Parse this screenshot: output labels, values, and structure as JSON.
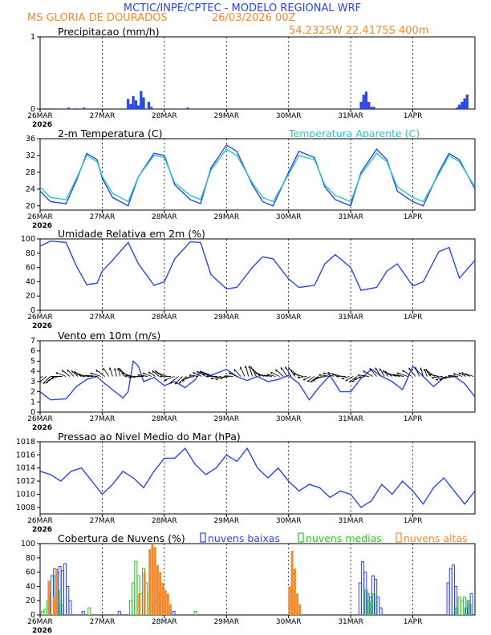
{
  "header": {
    "line1": "MCTIC/INPE/CPTEC - MODELO REGIONAL WRF",
    "station": "MS GLORIA DE DOURADOS",
    "run": "26/03/2026 00Z",
    "coords": "54.2325W 22.4175S 400m"
  },
  "colors": {
    "blue": "#2a45e8",
    "cyan": "#22c8c8",
    "green": "#22c822",
    "orange": "#f08a2a",
    "header_blue": "#2a45e8",
    "header_orange": "#f08a2a"
  },
  "x_axis": {
    "ticks": [
      "26MAR",
      "27MAR",
      "28MAR",
      "29MAR",
      "30MAR",
      "31MAR",
      "1APR"
    ],
    "year": "2026",
    "hours_total": 168
  },
  "chart_data": [
    {
      "id": "precip",
      "type": "bar",
      "title": "Precipitacao (mm/h)",
      "ylim": [
        0,
        1
      ],
      "yticks": [
        "0",
        "1"
      ],
      "x_hours": [
        2,
        4,
        11,
        14,
        17,
        34,
        35,
        36,
        37,
        38,
        39,
        40,
        42,
        43,
        57,
        124,
        125,
        126,
        127,
        128,
        129,
        161,
        162,
        163,
        164,
        165
      ],
      "values": [
        0.01,
        0.01,
        0.02,
        0.01,
        0.02,
        0.14,
        0.07,
        0.18,
        0.12,
        0.05,
        0.25,
        0.16,
        0.1,
        0.03,
        0.02,
        0.1,
        0.2,
        0.24,
        0.1,
        0.03,
        0.03,
        0.02,
        0.06,
        0.1,
        0.15,
        0.2
      ]
    },
    {
      "id": "temp",
      "type": "line",
      "title": "2-m Temperatura (C)",
      "legend2": "Temperatura Aparente (C)",
      "ylim": [
        19,
        36
      ],
      "yticks": [
        "20",
        "24",
        "28",
        "32",
        "36"
      ],
      "series": [
        {
          "name": "Temperatura",
          "color": "blue",
          "x": [
            0,
            4,
            10,
            14,
            18,
            22,
            24,
            28,
            34,
            38,
            44,
            48,
            52,
            58,
            62,
            66,
            72,
            76,
            82,
            86,
            90,
            96,
            100,
            106,
            110,
            114,
            120,
            124,
            130,
            134,
            138,
            144,
            148,
            154,
            158,
            162,
            168
          ],
          "values": [
            23.5,
            21.0,
            20.5,
            26.0,
            32.5,
            31.0,
            26.5,
            22.0,
            20.0,
            27.0,
            32.5,
            32.0,
            25.0,
            21.5,
            20.5,
            29.0,
            34.5,
            33.0,
            25.0,
            21.0,
            20.0,
            28.0,
            33.0,
            31.5,
            24.5,
            21.5,
            20.0,
            28.0,
            33.5,
            31.0,
            23.5,
            21.0,
            20.0,
            28.0,
            32.5,
            31.0,
            24.0
          ]
        },
        {
          "name": "Temperatura Aparente",
          "color": "cyan",
          "x": [
            0,
            4,
            10,
            14,
            18,
            22,
            24,
            28,
            34,
            38,
            44,
            48,
            52,
            58,
            62,
            66,
            72,
            76,
            82,
            86,
            90,
            96,
            100,
            106,
            110,
            114,
            120,
            124,
            130,
            134,
            138,
            144,
            148,
            154,
            158,
            162,
            168
          ],
          "values": [
            24.5,
            22.0,
            21.5,
            26.5,
            32.0,
            30.5,
            27.0,
            23.0,
            21.0,
            27.0,
            32.0,
            31.5,
            25.5,
            22.5,
            21.5,
            28.5,
            33.5,
            32.0,
            25.5,
            22.0,
            21.0,
            27.5,
            32.0,
            31.0,
            25.0,
            22.5,
            21.0,
            27.5,
            32.5,
            30.5,
            24.5,
            22.0,
            21.0,
            27.5,
            32.0,
            30.5,
            24.5
          ]
        }
      ]
    },
    {
      "id": "rh",
      "type": "line",
      "title": "Umidade Relativa em 2m (%)",
      "ylim": [
        0,
        100
      ],
      "yticks": [
        "0",
        "20",
        "40",
        "60",
        "80",
        "100"
      ],
      "series": [
        {
          "name": "Umidade",
          "color": "blue",
          "x": [
            0,
            4,
            10,
            14,
            18,
            22,
            24,
            28,
            34,
            38,
            44,
            48,
            52,
            58,
            62,
            66,
            72,
            76,
            82,
            86,
            90,
            96,
            100,
            106,
            110,
            114,
            120,
            124,
            130,
            134,
            138,
            144,
            148,
            154,
            158,
            162,
            168
          ],
          "values": [
            90,
            97,
            95,
            62,
            36,
            38,
            55,
            70,
            95,
            65,
            35,
            40,
            72,
            96,
            95,
            50,
            30,
            32,
            60,
            75,
            72,
            44,
            32,
            35,
            65,
            78,
            60,
            28,
            32,
            55,
            65,
            34,
            40,
            82,
            88,
            45,
            70
          ]
        }
      ]
    },
    {
      "id": "wind",
      "type": "line",
      "title": "Vento em 10m (m/s)",
      "ylim": [
        0,
        7
      ],
      "yticks": [
        "0",
        "1",
        "2",
        "3",
        "4",
        "5",
        "6",
        "7"
      ],
      "series": [
        {
          "name": "Vento",
          "color": "blue",
          "x": [
            0,
            4,
            10,
            14,
            18,
            22,
            24,
            28,
            32,
            34,
            36,
            38,
            40,
            44,
            48,
            52,
            56,
            60,
            62,
            66,
            72,
            76,
            80,
            84,
            88,
            92,
            96,
            100,
            104,
            108,
            112,
            116,
            120,
            124,
            128,
            132,
            136,
            140,
            144,
            148,
            152,
            156,
            160,
            164,
            168
          ],
          "values": [
            2.0,
            1.2,
            1.3,
            2.5,
            3.2,
            3.5,
            3.0,
            2.2,
            1.4,
            2.0,
            5.0,
            4.5,
            3.0,
            3.4,
            2.6,
            3.0,
            2.4,
            3.2,
            4.0,
            3.6,
            4.2,
            3.5,
            3.1,
            3.5,
            3.0,
            3.2,
            3.6,
            2.8,
            1.2,
            2.5,
            3.6,
            2.0,
            2.0,
            3.3,
            4.2,
            3.5,
            3.0,
            2.2,
            4.5,
            3.5,
            2.5,
            3.4,
            3.5,
            2.8,
            1.5
          ]
        }
      ],
      "barbs_note": "vectors drawn along y=3.5"
    },
    {
      "id": "pres",
      "type": "line",
      "title": "Pressao ao Nivel Medio do Mar (hPa)",
      "ylim": [
        1007,
        1018
      ],
      "yticks": [
        "1008",
        "1010",
        "1012",
        "1014",
        "1016",
        "1018"
      ],
      "series": [
        {
          "name": "Pressao",
          "color": "blue",
          "x": [
            0,
            4,
            8,
            12,
            16,
            20,
            24,
            28,
            32,
            36,
            40,
            44,
            48,
            52,
            56,
            60,
            64,
            68,
            72,
            76,
            80,
            84,
            88,
            92,
            96,
            100,
            104,
            108,
            112,
            116,
            120,
            124,
            128,
            132,
            136,
            140,
            144,
            148,
            152,
            156,
            160,
            164,
            168
          ],
          "values": [
            1013.5,
            1013.0,
            1012.0,
            1013.5,
            1014.0,
            1012.0,
            1010.0,
            1011.5,
            1013.5,
            1012.5,
            1011.0,
            1013.5,
            1015.5,
            1015.5,
            1017.0,
            1014.5,
            1013.0,
            1014.0,
            1016.0,
            1015.0,
            1017.0,
            1014.0,
            1012.5,
            1014.0,
            1012.0,
            1010.5,
            1011.5,
            1011.0,
            1009.5,
            1010.5,
            1010.0,
            1008.0,
            1009.0,
            1011.5,
            1010.0,
            1012.0,
            1010.5,
            1008.5,
            1011.0,
            1012.5,
            1010.5,
            1008.5,
            1010.5
          ]
        }
      ]
    },
    {
      "id": "clouds",
      "type": "bar",
      "title": "Cobertura de Nuvens (%)",
      "ylim": [
        0,
        100
      ],
      "yticks": [
        "0",
        "20",
        "40",
        "60",
        "80",
        "100"
      ],
      "legend": [
        "nuvens baixas",
        "nuvens medias",
        "nuvens altas"
      ],
      "series": [
        {
          "name": "nuvens baixas",
          "color": "blue",
          "x": [
            4,
            5,
            6,
            7,
            8,
            9,
            10,
            11,
            12,
            17,
            31,
            44,
            45,
            46,
            47,
            48,
            52,
            124,
            125,
            126,
            127,
            128,
            129,
            130,
            131,
            132,
            158,
            159,
            160,
            161,
            165,
            166,
            167
          ],
          "values": [
            30,
            55,
            65,
            60,
            68,
            62,
            72,
            40,
            20,
            5,
            5,
            10,
            20,
            30,
            20,
            10,
            5,
            45,
            75,
            60,
            30,
            25,
            55,
            50,
            25,
            10,
            45,
            65,
            70,
            40,
            10,
            20,
            30
          ]
        },
        {
          "name": "nuvens medias",
          "color": "green",
          "x": [
            1,
            2,
            3,
            6,
            7,
            8,
            19,
            35,
            36,
            37,
            38,
            39,
            40,
            41,
            42,
            43,
            60,
            126,
            127,
            128,
            129,
            161,
            162,
            163,
            164,
            165,
            166
          ],
          "values": [
            5,
            8,
            20,
            55,
            35,
            15,
            10,
            20,
            45,
            75,
            55,
            30,
            65,
            45,
            30,
            15,
            5,
            35,
            20,
            15,
            30,
            10,
            25,
            20,
            25,
            20,
            15
          ]
        },
        {
          "name": "nuvens altas",
          "color": "orange",
          "x": [
            3,
            5,
            6,
            38,
            40,
            42,
            43,
            44,
            45,
            46,
            47,
            48,
            49,
            50,
            96,
            97,
            98,
            99,
            100
          ],
          "values": [
            48,
            25,
            65,
            30,
            60,
            92,
            100,
            95,
            70,
            60,
            45,
            35,
            30,
            15,
            40,
            90,
            65,
            30,
            15
          ]
        }
      ]
    }
  ]
}
